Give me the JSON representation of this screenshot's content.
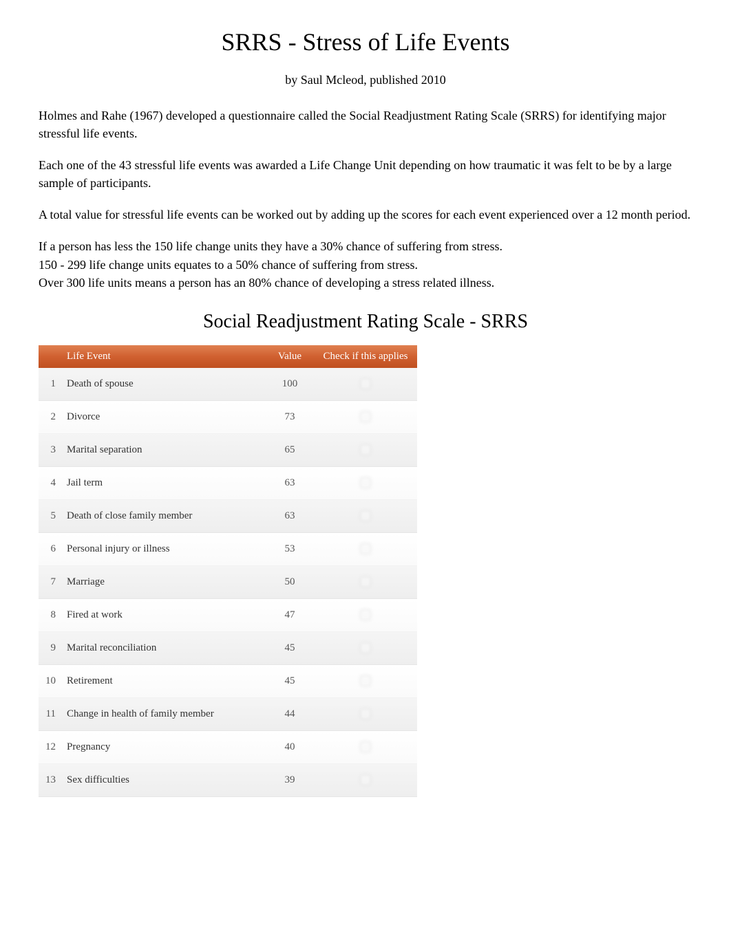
{
  "title": "SRRS - Stress of Life Events",
  "byline": "by Saul Mcleod, published 2010",
  "paragraphs": [
    "Holmes and Rahe (1967) developed a questionnaire called the Social Readjustment Rating Scale    (SRRS) for identifying major stressful life events.",
    "Each one of the 43 stressful life events was awarded a Life Change Unit   depending on how traumatic it was felt to be by a large sample of participants.",
    "A total value for stressful life events can be worked out by adding up the scores for each event experienced over a 12 month period.",
    "If a person has less the 150 life change units they have a 30% chance of suffering from stress.\n150 - 299 life change units equates to a 50% chance of suffering from stress.\nOver 300 life units means a person has an 80% chance of developing a stress related illness."
  ],
  "subheading": "Social Readjustment Rating Scale - SRRS",
  "table": {
    "headers": {
      "event": "Life Event",
      "value": "Value",
      "check": "Check if this applies"
    },
    "rows": [
      {
        "num": "1",
        "event": "Death of spouse",
        "value": "100"
      },
      {
        "num": "2",
        "event": "Divorce",
        "value": "73"
      },
      {
        "num": "3",
        "event": "Marital separation",
        "value": "65"
      },
      {
        "num": "4",
        "event": "Jail term",
        "value": "63"
      },
      {
        "num": "5",
        "event": "Death of close family member",
        "value": "63"
      },
      {
        "num": "6",
        "event": "Personal injury or illness",
        "value": "53"
      },
      {
        "num": "7",
        "event": "Marriage",
        "value": "50"
      },
      {
        "num": "8",
        "event": "Fired at work",
        "value": "47"
      },
      {
        "num": "9",
        "event": "Marital reconciliation",
        "value": "45"
      },
      {
        "num": "10",
        "event": "Retirement",
        "value": "45"
      },
      {
        "num": "11",
        "event": "Change in health of family member",
        "value": "44"
      },
      {
        "num": "12",
        "event": "Pregnancy",
        "value": "40"
      },
      {
        "num": "13",
        "event": "Sex difficulties",
        "value": "39"
      }
    ]
  },
  "colors": {
    "header_gradient_start": "#e08050",
    "header_gradient_end": "#c05020",
    "odd_row_bg": "#eeeeee",
    "even_row_bg": "#ffffff",
    "text_color": "#000000",
    "cell_text_color": "#333333"
  }
}
